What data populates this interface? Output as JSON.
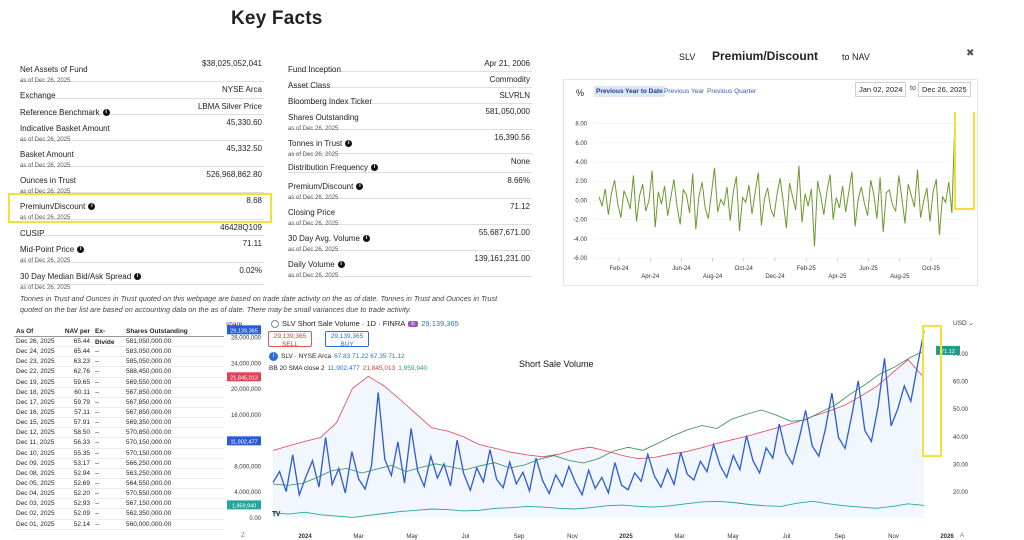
{
  "key_facts": {
    "title": "Key Facts",
    "left": [
      {
        "label": "Net Assets of Fund",
        "value": "$38,025,052,041",
        "asof": "as of Dec 26, 2025",
        "info": false
      },
      {
        "label": "Exchange",
        "value": "NYSE Arca",
        "asof": "",
        "info": false
      },
      {
        "label": "Reference Benchmark",
        "value": "LBMA Silver Price",
        "asof": "",
        "info": true
      },
      {
        "label": "Indicative Basket Amount",
        "value": "45,330.60",
        "asof": "as of Dec 26, 2025",
        "info": false
      },
      {
        "label": "Basket Amount",
        "value": "45,332.50",
        "asof": "as of Dec 26, 2025",
        "info": false
      },
      {
        "label": "Ounces in Trust",
        "value": "526,968,862.80",
        "asof": "as of Dec 26, 2025",
        "info": false
      },
      {
        "label": "Premium/Discount",
        "value": "8.68",
        "asof": "as of Dec 26, 2025",
        "info": true
      },
      {
        "label": "CUSIP",
        "value": "46428Q109",
        "asof": "",
        "info": false
      },
      {
        "label": "Mid-Point Price",
        "value": "71.11",
        "asof": "as of Dec 26, 2025",
        "info": true
      },
      {
        "label": "30 Day Median Bid/Ask Spread",
        "value": "0.02%",
        "asof": "as of Dec 26, 2025",
        "info": true
      }
    ],
    "right": [
      {
        "label": "Fund Inception",
        "value": "Apr 21, 2006",
        "asof": "",
        "info": false
      },
      {
        "label": "Asset Class",
        "value": "Commodity",
        "asof": "",
        "info": false
      },
      {
        "label": "Bloomberg Index Ticker",
        "value": "SLVRLN",
        "asof": "",
        "info": false
      },
      {
        "label": "Shares Outstanding",
        "value": "581,050,000",
        "asof": "as of Dec 26, 2025",
        "info": false
      },
      {
        "label": "Tonnes in Trust",
        "value": "16,390.56",
        "asof": "as of Dec 26, 2025",
        "info": true
      },
      {
        "label": "Distribution Frequency",
        "value": "None",
        "asof": "",
        "info": true
      },
      {
        "label": "Premium/Discount",
        "value": "8.66%",
        "asof": "as of Dec 26, 2025",
        "info": true
      },
      {
        "label": "Closing Price",
        "value": "71.12",
        "asof": "as of Dec 26, 2025",
        "info": false
      },
      {
        "label": "30 Day Avg. Volume",
        "value": "55,687,671.00",
        "asof": "as of Dec 26, 2025",
        "info": true
      },
      {
        "label": "Daily Volume",
        "value": "139,161,231.00",
        "asof": "as of Dec 26, 2025",
        "info": true
      }
    ],
    "note": "Tonnes in Trust and Ounces in Trust quoted on this webpage are based on trade date activity on the as of date. Tonnes in Trust and Ounces in Trust quoted on the bar list are based on accounting data on the as of date. There may be small variances due to trade activity."
  },
  "premium_panel": {
    "ticker": "SLV",
    "title": "Premium/Discount",
    "subtitle": "to NAV",
    "close_icon": "close-icon",
    "unit": "%",
    "tabs": [
      "Previous Year to Date",
      "Previous Year",
      "Previous Quarter"
    ],
    "active_tab": 0,
    "date_from": "Jan 02, 2024",
    "date_to": "Dec 26, 2025",
    "to_label": "to",
    "highlight_color": "#f2e13a",
    "line_color": "#6a9a2c"
  },
  "holdings_table": {
    "headers": [
      "As Of",
      "NAV per",
      "Ex-Divide",
      "Shares Outstanding"
    ],
    "rows": [
      [
        "Dec 26, 2025",
        "65.44",
        "--",
        "581,050,000.00"
      ],
      [
        "Dec 24, 2025",
        "65.44",
        "--",
        "583,050,000.00"
      ],
      [
        "Dec 23, 2025",
        "63.23",
        "--",
        "585,050,000.00"
      ],
      [
        "Dec 22, 2025",
        "62.76",
        "--",
        "588,450,000.00"
      ],
      [
        "Dec 19, 2025",
        "59.65",
        "--",
        "569,550,000.00"
      ],
      [
        "Dec 18, 2025",
        "60.11",
        "--",
        "567,850,000.00"
      ],
      [
        "Dec 17, 2025",
        "59.79",
        "--",
        "567,850,000.00"
      ],
      [
        "Dec 16, 2025",
        "57.11",
        "--",
        "567,850,000.00"
      ],
      [
        "Dec 15, 2025",
        "57.91",
        "--",
        "569,350,000.00"
      ],
      [
        "Dec 12, 2025",
        "58.50",
        "--",
        "570,850,000.00"
      ],
      [
        "Dec 11, 2025",
        "56.33",
        "--",
        "570,150,000.00"
      ],
      [
        "Dec 10, 2025",
        "55.35",
        "--",
        "570,150,000.00"
      ],
      [
        "Dec 09, 2025",
        "53.17",
        "--",
        "566,250,000.00"
      ],
      [
        "Dec 08, 2025",
        "52.94",
        "--",
        "563,250,000.00"
      ],
      [
        "Dec 05, 2025",
        "52.69",
        "--",
        "564,550,000.00"
      ],
      [
        "Dec 04, 2025",
        "52.20",
        "--",
        "570,550,000.00"
      ],
      [
        "Dec 03, 2025",
        "52.93",
        "--",
        "567,150,000.00"
      ],
      [
        "Dec 02, 2025",
        "52.09",
        "--",
        "562,350,000.00"
      ],
      [
        "Dec 01, 2025",
        "52.14",
        "--",
        "560,000,000.00"
      ]
    ]
  },
  "short_sale_panel": {
    "share_label": "share",
    "header": "SLV Short Sale Volume · 1D · FINRA",
    "badge": "E",
    "header_value": "29,139,365",
    "sell_value": "29,139,365",
    "sell_label": "SELL",
    "buy_value": "29,139,365",
    "buy_label": "BUY",
    "line2_name": "SLV · NYSE Arca",
    "line2_ohlc": "67.83 71.22 67.35 71.12",
    "line3_name": "BB 20 SMA close 2",
    "line3_mid": "11,902,477",
    "line3_up": "21,845,013",
    "line3_low": "1,959,940",
    "title": "Short Sale Volume",
    "currency": "USD",
    "tv_logo": "TV",
    "corner_left": "Z",
    "corner_right": "A",
    "price_tag": "71.12",
    "volume_color": "#2a5bd7",
    "upper_band_color": "#e0435a",
    "lower_band_color": "#26a69a",
    "price_color": "#2e8b57",
    "highlight_color": "#f2e13a"
  },
  "chart_data": [
    {
      "type": "line",
      "title": "Premium/Discount",
      "ylabel": "%",
      "ylim": [
        -6,
        9
      ],
      "y_ticks": [
        "8.00",
        "6.00",
        "4.00",
        "2.00",
        "0.00",
        "-2.00",
        "-4.00",
        "-6.00"
      ],
      "x_ticks": [
        "Feb-24",
        "Apr-24",
        "Jun-24",
        "Aug-24",
        "Oct-24",
        "Dec-24",
        "Feb-25",
        "Apr-25",
        "Jun-25",
        "Aug-25",
        "Oct-25"
      ],
      "series": [
        {
          "values": [
            0.4,
            -0.6,
            1.2,
            -1.5,
            0.8,
            2.1,
            -0.3,
            -1.8,
            1.0,
            0.2,
            -0.9,
            2.6,
            -2.2,
            0.5,
            1.7,
            -1.1,
            0.0,
            3.1,
            -2.8,
            0.9,
            -0.4,
            1.5,
            -1.6,
            0.3,
            2.2,
            -0.7,
            -2.5,
            1.1,
            0.6,
            -1.3,
            2.8,
            -3.0,
            0.4,
            1.9,
            -0.8,
            -1.9,
            0.7,
            3.4,
            -1.2,
            0.1,
            -0.5,
            1.4,
            -2.1,
            0.9,
            2.5,
            -3.2,
            0.3,
            -0.2,
            1.6,
            -1.4,
            0.8,
            2.9,
            -2.6,
            0.2,
            1.3,
            -0.9,
            -1.7,
            0.6,
            2.3,
            -0.1,
            -2.9,
            1.8,
            0.4,
            -1.0,
            3.6,
            -2.3,
            0.7,
            -0.6,
            1.2,
            -4.8,
            2.0,
            0.5,
            -1.5,
            1.0,
            2.7,
            -2.0,
            0.3,
            -0.8,
            1.5,
            -1.2,
            0.9,
            3.0,
            -2.7,
            0.1,
            1.4,
            -0.3,
            -1.6,
            2.1,
            0.6,
            -1.9,
            2.4,
            -3.3,
            0.8,
            1.1,
            -0.5,
            -1.1,
            2.6,
            0.2,
            -2.4,
            1.7,
            0.5,
            -0.7,
            3.2,
            -1.8,
            0.0,
            1.3,
            -2.2,
            0.9,
            2.2,
            -3.6,
            0.4,
            -0.2,
            1.9,
            -1.3,
            8.6
          ]
        }
      ]
    },
    {
      "type": "line",
      "title": "Short Sale Volume",
      "y_ticks_left": [
        "28,000,000",
        "24,000,000",
        "20,000,000",
        "16,000,000",
        "12,000,000",
        "8,000,000",
        "4,000,000",
        "0.00"
      ],
      "y_ticks_right": [
        "70.00",
        "60.00",
        "50.00",
        "40.00",
        "30.00",
        "20.00"
      ],
      "x_ticks": [
        "2024",
        "Mar",
        "May",
        "Jul",
        "Sep",
        "Nov",
        "2025",
        "Mar",
        "May",
        "Jul",
        "Sep",
        "Nov",
        "2026"
      ],
      "series": [
        {
          "name": "SLV Short Sale Volume",
          "values": [
            5.5,
            7.2,
            4.1,
            9.8,
            3.6,
            6.4,
            8.9,
            4.8,
            12.5,
            5.2,
            7.7,
            3.9,
            10.3,
            6.1,
            4.5,
            8.2,
            19.5,
            9.1,
            6.6,
            11.8,
            5.4,
            13.9,
            7.3,
            4.9,
            9.6,
            6.2,
            8.4,
            5.0,
            12.1,
            6.9,
            4.3,
            7.8,
            5.6,
            10.6,
            6.0,
            4.7,
            8.7,
            5.3,
            7.1,
            4.2,
            9.3,
            5.8,
            3.8,
            6.7,
            4.9,
            8.0,
            5.5,
            3.6,
            7.4,
            4.6,
            6.3,
            3.9,
            8.6,
            5.1,
            4.4,
            7.0,
            5.7,
            9.9,
            6.5,
            4.8,
            7.6,
            5.2,
            10.2,
            6.8,
            5.9,
            8.8,
            7.2,
            11.4,
            8.1,
            6.3,
            9.7,
            7.5,
            12.8,
            8.9,
            7.0,
            10.9,
            9.3,
            14.6,
            10.1,
            8.4,
            12.3,
            16.7,
            11.2,
            9.6,
            13.8,
            19.4,
            12.5,
            10.8,
            15.9,
            21.3,
            13.6,
            11.9,
            17.2,
            24.8,
            14.3,
            16.9,
            20.5,
            18.1,
            23.6,
            29.1
          ]
        },
        {
          "name": "BB 20 SMA close 2 upper",
          "values": [
            10.5,
            11.2,
            11.9,
            12.5,
            14.8,
            20.1,
            22.0,
            20.5,
            18.4,
            16.2,
            14.0,
            13.5,
            12.6,
            11.4,
            10.8,
            10.2,
            9.8,
            9.5,
            9.9,
            10.6,
            11.0,
            10.4,
            9.7,
            9.2,
            9.4,
            9.9,
            10.3,
            10.9,
            11.6,
            12.2,
            12.8,
            13.5,
            14.2,
            14.9,
            15.8,
            16.6,
            17.5,
            18.9,
            20.4,
            22.5,
            24.6,
            21.8
          ]
        },
        {
          "name": "BB 20 SMA close 2 lower",
          "values": [
            0.8,
            0.6,
            0.9,
            0.5,
            0.3,
            0.1,
            0.4,
            0.7,
            1.0,
            1.2,
            1.4,
            1.3,
            1.1,
            1.2,
            1.5,
            1.6,
            1.8,
            1.7,
            1.5,
            1.4,
            1.6,
            1.9,
            2.0,
            1.8,
            1.7,
            1.9,
            2.2,
            2.5,
            2.6,
            2.4,
            2.1,
            1.9,
            1.8,
            2.3,
            2.6,
            2.2,
            1.9,
            1.7,
            1.5,
            1.8,
            2.2,
            1.96
          ]
        },
        {
          "name": "SLV · NYSE Arca",
          "values": [
            22.9,
            22.4,
            23.1,
            25.3,
            27.8,
            28.5,
            26.9,
            28.3,
            29.6,
            27.4,
            28.9,
            30.2,
            29.1,
            28.0,
            29.5,
            30.6,
            28.7,
            29.8,
            31.9,
            33.2,
            31.4,
            30.5,
            32.1,
            34.8,
            36.2,
            35.1,
            37.6,
            40.3,
            42.5,
            44.1,
            43.0,
            46.4,
            48.2,
            49.7,
            47.9,
            45.6,
            46.1,
            48.9,
            51.5,
            55.4,
            58.8,
            62.7,
            65.2,
            68.5,
            71.12
          ]
        }
      ]
    }
  ]
}
